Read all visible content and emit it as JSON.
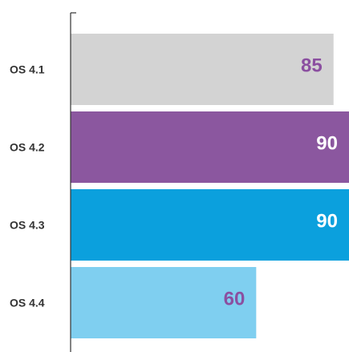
{
  "chart_data": {
    "type": "bar",
    "orientation": "horizontal",
    "title": "",
    "xlabel": "",
    "ylabel": "",
    "xlim": [
      0,
      90
    ],
    "grid": false,
    "categories": [
      "OS 4.1",
      "OS 4.2",
      "OS 4.3",
      "OS 4.4"
    ],
    "values": [
      85,
      90,
      90,
      60
    ],
    "bar_colors": [
      "#d3d3d3",
      "#8b579f",
      "#0ba0dd",
      "#7fcff0"
    ],
    "label_colors": [
      "#8b4fa0",
      "#ffffff",
      "#ffffff",
      "#8b4fa0"
    ]
  }
}
